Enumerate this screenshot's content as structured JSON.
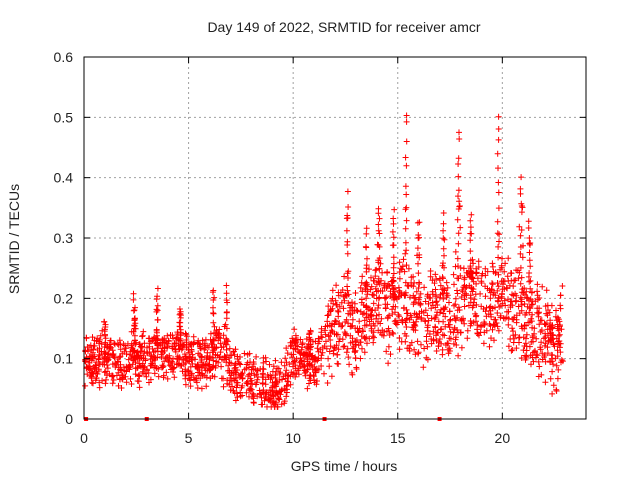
{
  "chart_data": {
    "type": "scatter",
    "title": "Day 149 of 2022, SRMTID for receiver amcr",
    "xlabel": "GPS time / hours",
    "ylabel": "SRMTID / TECUs",
    "xlim": [
      0,
      24
    ],
    "ylim": [
      0,
      0.6
    ],
    "xticks": [
      0,
      5,
      10,
      15,
      20
    ],
    "yticks": [
      0,
      0.1,
      0.2,
      0.3,
      0.4,
      0.5,
      0.6
    ],
    "xtick_labels": [
      "0",
      "5",
      "10",
      "15",
      "20"
    ],
    "ytick_labels": [
      "0",
      "0.1",
      "0.2",
      "0.3",
      "0.4",
      "0.5",
      "0.6"
    ],
    "grid": true,
    "marker": "+",
    "series_color": "#ff0000",
    "trend": {
      "x": [
        0.0,
        0.5,
        1.0,
        1.5,
        2.0,
        2.5,
        3.0,
        3.5,
        4.0,
        4.5,
        5.0,
        5.5,
        6.0,
        6.5,
        7.0,
        7.5,
        8.0,
        8.5,
        9.0,
        9.5,
        10.0,
        10.5,
        11.0,
        11.5,
        12.0,
        12.5,
        13.0,
        13.5,
        14.0,
        14.5,
        15.0,
        15.5,
        16.0,
        16.5,
        17.0,
        17.5,
        18.0,
        18.5,
        19.0,
        19.5,
        20.0,
        20.5,
        21.0,
        21.5,
        22.0,
        22.5,
        23.0
      ],
      "y": [
        0.09,
        0.1,
        0.1,
        0.1,
        0.09,
        0.1,
        0.1,
        0.11,
        0.1,
        0.11,
        0.1,
        0.09,
        0.1,
        0.11,
        0.08,
        0.07,
        0.065,
        0.06,
        0.055,
        0.06,
        0.11,
        0.1,
        0.09,
        0.13,
        0.16,
        0.17,
        0.14,
        0.17,
        0.2,
        0.17,
        0.19,
        0.18,
        0.17,
        0.16,
        0.18,
        0.17,
        0.19,
        0.2,
        0.18,
        0.19,
        0.21,
        0.19,
        0.17,
        0.16,
        0.14,
        0.12,
        0.15
      ]
    },
    "spikes": [
      {
        "x": 1.0,
        "y": 0.16
      },
      {
        "x": 2.4,
        "y": 0.2
      },
      {
        "x": 3.5,
        "y": 0.21
      },
      {
        "x": 4.6,
        "y": 0.18
      },
      {
        "x": 6.2,
        "y": 0.22
      },
      {
        "x": 6.8,
        "y": 0.22
      },
      {
        "x": 10.8,
        "y": 0.15
      },
      {
        "x": 12.6,
        "y": 0.37
      },
      {
        "x": 13.5,
        "y": 0.31
      },
      {
        "x": 14.1,
        "y": 0.35
      },
      {
        "x": 14.8,
        "y": 0.34
      },
      {
        "x": 15.4,
        "y": 0.51
      },
      {
        "x": 16.0,
        "y": 0.33
      },
      {
        "x": 17.2,
        "y": 0.34
      },
      {
        "x": 17.9,
        "y": 0.48
      },
      {
        "x": 18.5,
        "y": 0.34
      },
      {
        "x": 19.8,
        "y": 0.5
      },
      {
        "x": 20.9,
        "y": 0.4
      },
      {
        "x": 21.3,
        "y": 0.33
      },
      {
        "x": 22.3,
        "y": 0.16
      }
    ],
    "gap_markers_x": [
      0.1,
      3.0,
      11.5,
      17.0
    ]
  }
}
